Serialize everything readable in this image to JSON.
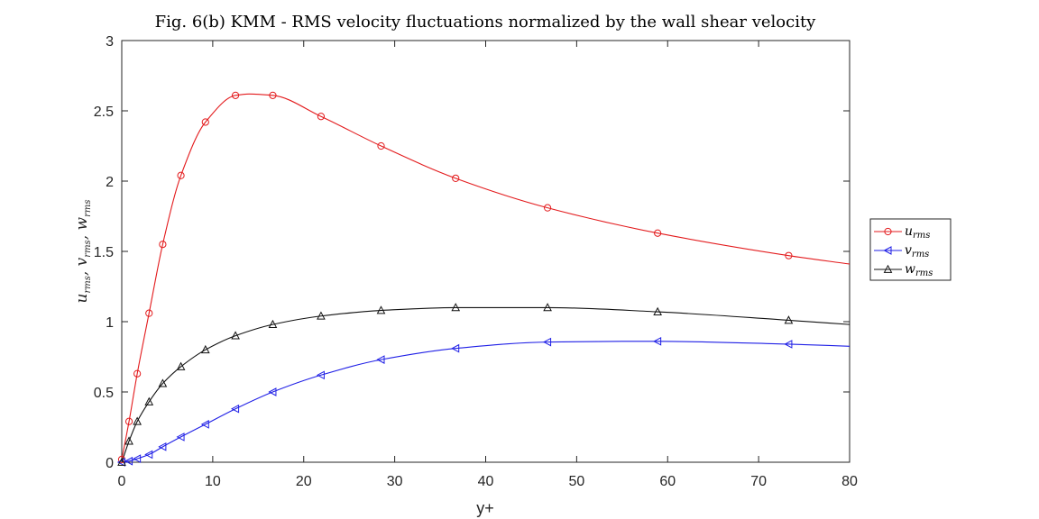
{
  "chart_data": {
    "type": "line",
    "title": "Fig. 6(b) KMM - RMS velocity fluctuations normalized by the wall shear velocity",
    "xlabel": "y+",
    "ylabel": "u_rms, v_rms, w_rms",
    "ylabel_parts": [
      {
        "base": "u",
        "sub": "rms"
      },
      {
        "base": "v",
        "sub": "rms"
      },
      {
        "base": "w",
        "sub": "rms"
      }
    ],
    "xlim": [
      0,
      80
    ],
    "ylim": [
      0,
      3
    ],
    "xticks": [
      0,
      10,
      20,
      30,
      40,
      50,
      60,
      70,
      80
    ],
    "yticks": [
      0,
      0.5,
      1,
      1.5,
      2,
      2.5,
      3
    ],
    "xtick_labels": [
      "0",
      "10",
      "20",
      "30",
      "40",
      "50",
      "60",
      "70",
      "80"
    ],
    "ytick_labels": [
      "0",
      "0.5",
      "1",
      "1.5",
      "2",
      "2.5",
      "3"
    ],
    "grid": false,
    "legend_position": "outside-right",
    "series": [
      {
        "name": "u_rms",
        "base": "u",
        "sub": "rms",
        "color": "#e31a1c",
        "marker": "circle",
        "x": [
          0,
          0.8,
          1.7,
          3.0,
          4.5,
          6.5,
          9.2,
          12.5,
          14.0,
          16.6,
          21.9,
          28.5,
          36.7,
          46.8,
          58.9,
          73.3,
          80.0
        ],
        "y": [
          0.02,
          0.29,
          0.63,
          1.06,
          1.55,
          2.04,
          2.42,
          2.61,
          2.62,
          2.61,
          2.46,
          2.25,
          2.02,
          1.81,
          1.63,
          1.47,
          1.41
        ],
        "markers_x": [
          0,
          0.8,
          1.7,
          3.0,
          4.5,
          6.5,
          9.2,
          12.5,
          16.6,
          21.9,
          28.5,
          36.7,
          46.8,
          58.9,
          73.3
        ],
        "markers_y": [
          0.02,
          0.29,
          0.63,
          1.06,
          1.55,
          2.04,
          2.42,
          2.61,
          2.61,
          2.46,
          2.25,
          2.02,
          1.81,
          1.63,
          1.47
        ]
      },
      {
        "name": "v_rms",
        "base": "v",
        "sub": "rms",
        "color": "#1f1fe6",
        "marker": "triangle-left",
        "x": [
          0,
          0.8,
          1.7,
          3.0,
          4.5,
          6.5,
          9.2,
          12.5,
          16.6,
          21.9,
          28.5,
          36.7,
          46.8,
          55.0,
          58.9,
          73.3,
          80.0
        ],
        "y": [
          0.0,
          0.008,
          0.025,
          0.055,
          0.11,
          0.18,
          0.27,
          0.38,
          0.5,
          0.62,
          0.73,
          0.81,
          0.855,
          0.86,
          0.86,
          0.84,
          0.825
        ],
        "markers_x": [
          0,
          0.8,
          1.7,
          3.0,
          4.5,
          6.5,
          9.2,
          12.5,
          16.6,
          21.9,
          28.5,
          36.7,
          46.8,
          58.9,
          73.3
        ],
        "markers_y": [
          0.0,
          0.008,
          0.025,
          0.055,
          0.11,
          0.18,
          0.27,
          0.38,
          0.5,
          0.62,
          0.73,
          0.81,
          0.855,
          0.86,
          0.84
        ]
      },
      {
        "name": "w_rms",
        "base": "w",
        "sub": "rms",
        "color": "#111111",
        "marker": "triangle-up",
        "x": [
          0,
          0.8,
          1.7,
          3.0,
          4.5,
          6.5,
          9.2,
          12.5,
          16.6,
          21.9,
          28.5,
          36.7,
          42.0,
          46.8,
          58.9,
          73.3,
          80.0
        ],
        "y": [
          0.0,
          0.15,
          0.29,
          0.43,
          0.56,
          0.68,
          0.8,
          0.9,
          0.98,
          1.04,
          1.08,
          1.1,
          1.1,
          1.1,
          1.07,
          1.01,
          0.98
        ],
        "markers_x": [
          0,
          0.8,
          1.7,
          3.0,
          4.5,
          6.5,
          9.2,
          12.5,
          16.6,
          21.9,
          28.5,
          36.7,
          46.8,
          58.9,
          73.3
        ],
        "markers_y": [
          0.0,
          0.15,
          0.29,
          0.43,
          0.56,
          0.68,
          0.8,
          0.9,
          0.98,
          1.04,
          1.08,
          1.1,
          1.1,
          1.07,
          1.01
        ]
      }
    ]
  }
}
